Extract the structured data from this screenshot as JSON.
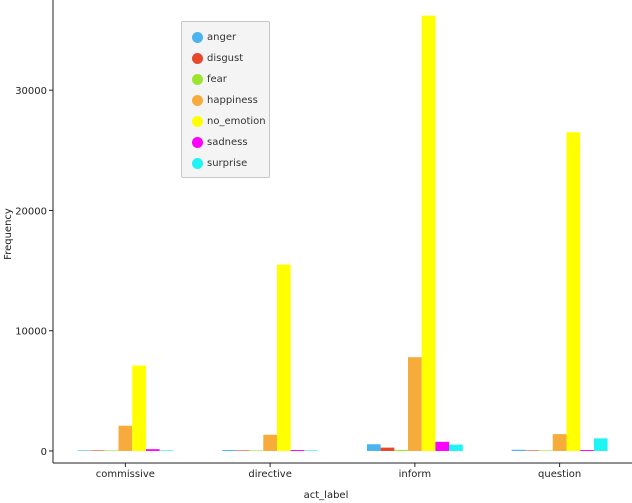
{
  "chart_data": {
    "type": "bar",
    "title": "",
    "xlabel": "act_label",
    "ylabel": "Frequency",
    "categories": [
      "commissive",
      "directive",
      "inform",
      "question"
    ],
    "ylim": [
      -1000,
      37500
    ],
    "yticks": [
      0,
      10000,
      20000,
      30000
    ],
    "ytick_labels": [
      "0",
      "10000",
      "20000",
      "30000"
    ],
    "grid": false,
    "legend_position": "top-left",
    "series": [
      {
        "name": "anger",
        "color": "#4ab4ee",
        "values": [
          30,
          80,
          560,
          100
        ]
      },
      {
        "name": "disgust",
        "color": "#e8472c",
        "values": [
          20,
          40,
          280,
          40
        ]
      },
      {
        "name": "fear",
        "color": "#9be52e",
        "values": [
          15,
          30,
          90,
          30
        ]
      },
      {
        "name": "happiness",
        "color": "#f6ab3b",
        "values": [
          2100,
          1350,
          7800,
          1400
        ]
      },
      {
        "name": "no_emotion",
        "color": "#ffff00",
        "values": [
          7100,
          15500,
          36200,
          26500
        ]
      },
      {
        "name": "sadness",
        "color": "#ff00ff",
        "values": [
          150,
          80,
          760,
          80
        ]
      },
      {
        "name": "surprise",
        "color": "#1ef4f4",
        "values": [
          50,
          50,
          530,
          1050
        ]
      }
    ]
  }
}
